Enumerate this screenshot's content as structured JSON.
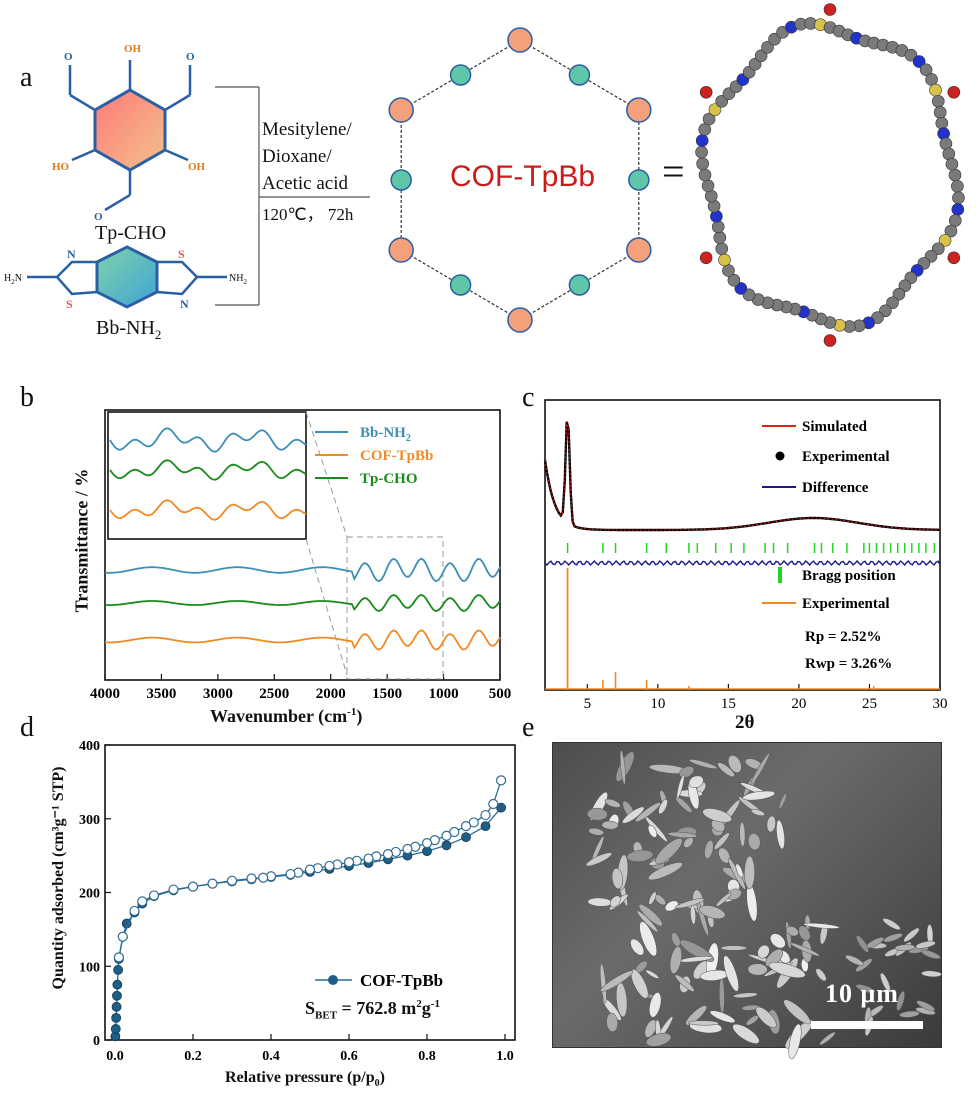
{
  "panel_a": {
    "letter": "a",
    "reactant1": "Tp-CHO",
    "reactant2_base": "Bb-NH",
    "reactant2_sub": "2",
    "conditions": [
      "Mesitylene/",
      "Dioxane/",
      "Acetic acid",
      "120℃， 72h"
    ],
    "product": "COF-TpBb",
    "equals": "=",
    "atom_labels": {
      "o": "O",
      "oh": "OH",
      "ho": "HO",
      "n": "N",
      "s": "S",
      "nh2_right": "NH",
      "h2n_left": "H",
      "nh2_sub": "2"
    }
  },
  "panel_b": {
    "letter": "b",
    "ylabel": "Transmittance / %",
    "xlabel": "Wavenumber (cm",
    "xlabel_sup": "-1",
    "xlabel_end": ")",
    "legend": [
      {
        "base": "Bb-NH",
        "sub": "2",
        "color": "#3d8fb5"
      },
      {
        "base": "COF-TpBb",
        "sub": "",
        "color": "#f08a24"
      },
      {
        "base": "Tp-CHO",
        "sub": "",
        "color": "#1a8a1a"
      }
    ]
  },
  "panel_c": {
    "letter": "c",
    "legend": [
      "Simulated",
      "Experimental",
      "Difference",
      "Bragg position",
      "Experimental"
    ],
    "rp": "Rp  =  2.52%",
    "rwp": "Rwp  =  3.26%",
    "xlabel": "2θ"
  },
  "panel_d": {
    "letter": "d",
    "ylabel": "Quantity adsorbed (cm³g⁻¹ STP)",
    "xlabel": "Relative pressure (p/p",
    "xlabel_sub": "0",
    "xlabel_end": ")",
    "legend": "COF-TpBb",
    "sbet_base": "S",
    "sbet_sub": "BET",
    "sbet_value": " = 762.8 m",
    "sbet_sup1": "2",
    "sbet_unit": "g",
    "sbet_sup2": "-1"
  },
  "panel_e": {
    "letter": "e",
    "scale": "10 μm"
  },
  "chart_data": [
    {
      "type": "line",
      "id": "ftir",
      "xlabel": "Wavenumber (cm-1)",
      "ylabel": "Transmittance / %",
      "xlim": [
        4000,
        500
      ],
      "xticks": [
        4000,
        3500,
        3000,
        2500,
        2000,
        1500,
        1000,
        500
      ],
      "series": [
        {
          "name": "Bb-NH2",
          "color": "#3d8fb5"
        },
        {
          "name": "Tp-CHO",
          "color": "#1a8a1a"
        },
        {
          "name": "COF-TpBb",
          "color": "#f08a24"
        }
      ]
    },
    {
      "type": "line",
      "id": "pxrd",
      "xlabel": "2θ",
      "xlim": [
        2,
        30
      ],
      "xticks": [
        5,
        10,
        15,
        20,
        25,
        30
      ],
      "series": [
        {
          "name": "Simulated",
          "color": "#e0201b"
        },
        {
          "name": "Experimental",
          "color": "#000000"
        },
        {
          "name": "Difference",
          "color": "#1a1a8a"
        },
        {
          "name": "Bragg position",
          "color": "#22d422"
        },
        {
          "name": "Experimental",
          "color": "#f08a24"
        }
      ],
      "annotations": [
        "Rp  =  2.52%",
        "Rwp  =  3.26%"
      ]
    },
    {
      "type": "scatter",
      "id": "isotherm",
      "xlabel": "Relative pressure (p/p0)",
      "ylabel": "Quantity adsorbed (cm3g-1 STP)",
      "xlim": [
        0.0,
        1.0
      ],
      "ylim": [
        0,
        400
      ],
      "xticks": [
        0.0,
        0.2,
        0.4,
        0.6,
        0.8,
        1.0
      ],
      "yticks": [
        0,
        100,
        200,
        300,
        400
      ],
      "series": [
        {
          "name": "COF-TpBb",
          "branch": "adsorption",
          "x": [
            0.001,
            0.002,
            0.003,
            0.004,
            0.005,
            0.006,
            0.008,
            0.01,
            0.02,
            0.03,
            0.05,
            0.07,
            0.1,
            0.15,
            0.2,
            0.25,
            0.3,
            0.35,
            0.4,
            0.45,
            0.5,
            0.55,
            0.6,
            0.65,
            0.7,
            0.75,
            0.8,
            0.85,
            0.9,
            0.95,
            0.99
          ],
          "y": [
            5,
            15,
            30,
            45,
            60,
            75,
            95,
            110,
            140,
            158,
            173,
            185,
            195,
            203,
            208,
            212,
            215,
            218,
            221,
            224,
            228,
            232,
            236,
            240,
            245,
            250,
            256,
            264,
            275,
            290,
            315
          ]
        },
        {
          "name": "COF-TpBb",
          "branch": "desorption",
          "x": [
            0.99,
            0.97,
            0.95,
            0.92,
            0.9,
            0.87,
            0.85,
            0.82,
            0.8,
            0.77,
            0.75,
            0.72,
            0.7,
            0.67,
            0.65,
            0.62,
            0.6,
            0.57,
            0.55,
            0.52,
            0.5,
            0.47,
            0.45,
            0.4,
            0.38,
            0.35,
            0.3,
            0.25,
            0.2,
            0.15,
            0.1,
            0.07,
            0.05,
            0.02,
            0.01
          ],
          "y": [
            352,
            320,
            305,
            295,
            290,
            282,
            277,
            271,
            267,
            262,
            259,
            255,
            252,
            249,
            246,
            243,
            241,
            238,
            236,
            233,
            231,
            227,
            225,
            222,
            220,
            219,
            216,
            212,
            208,
            204,
            196,
            188,
            175,
            140,
            112
          ]
        }
      ],
      "annotation": "SBET = 762.8 m2g-1"
    }
  ]
}
